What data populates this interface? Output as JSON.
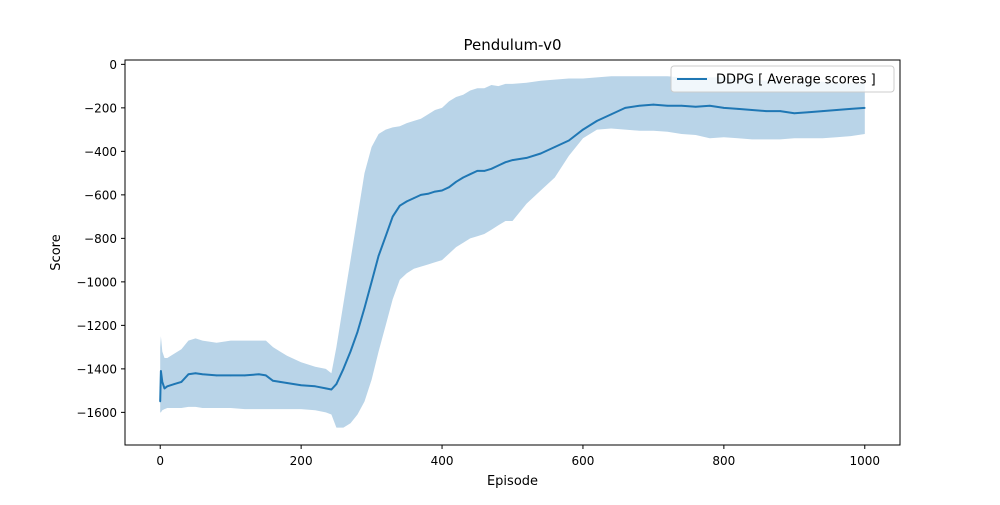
{
  "chart_data": {
    "type": "line",
    "title": "Pendulum-v0",
    "xlabel": "Episode",
    "ylabel": "Score",
    "xlim": [
      -50,
      1050
    ],
    "ylim": [
      -1750,
      20
    ],
    "xticks": [
      0,
      200,
      400,
      600,
      800,
      1000
    ],
    "yticks": [
      0,
      -200,
      -400,
      -600,
      -800,
      -1000,
      -1200,
      -1400,
      -1600
    ],
    "xtick_labels": [
      "0",
      "200",
      "400",
      "600",
      "800",
      "1000"
    ],
    "ytick_labels": [
      "0",
      "−200",
      "−400",
      "−600",
      "−800",
      "−1000",
      "−1200",
      "−1400",
      "−1600"
    ],
    "grid": false,
    "legend": {
      "position": "top-right",
      "entries": [
        "DDPG [ Average scores ]"
      ]
    },
    "series": [
      {
        "name": "DDPG [ Average scores ]",
        "color": "#1f77b4",
        "band_color": "#b9d4e8",
        "x": [
          0,
          1,
          3,
          6,
          10,
          20,
          30,
          40,
          50,
          60,
          80,
          100,
          120,
          140,
          150,
          160,
          170,
          180,
          200,
          220,
          235,
          243,
          250,
          260,
          270,
          280,
          290,
          300,
          310,
          320,
          330,
          340,
          350,
          360,
          370,
          380,
          390,
          400,
          410,
          420,
          430,
          440,
          450,
          460,
          470,
          480,
          490,
          500,
          520,
          540,
          560,
          580,
          600,
          620,
          640,
          660,
          680,
          700,
          720,
          740,
          760,
          780,
          800,
          820,
          840,
          860,
          880,
          900,
          920,
          940,
          960,
          980,
          1000
        ],
        "mean": [
          -1550,
          -1410,
          -1460,
          -1490,
          -1480,
          -1470,
          -1460,
          -1425,
          -1420,
          -1425,
          -1430,
          -1430,
          -1430,
          -1425,
          -1430,
          -1455,
          -1460,
          -1465,
          -1475,
          -1480,
          -1490,
          -1495,
          -1470,
          -1400,
          -1320,
          -1230,
          -1120,
          -1000,
          -880,
          -790,
          -700,
          -650,
          -630,
          -615,
          -600,
          -595,
          -585,
          -580,
          -565,
          -540,
          -520,
          -505,
          -490,
          -490,
          -480,
          -465,
          -450,
          -440,
          -430,
          -410,
          -380,
          -350,
          -300,
          -260,
          -230,
          -200,
          -190,
          -185,
          -190,
          -190,
          -195,
          -190,
          -200,
          -205,
          -210,
          -215,
          -215,
          -225,
          -220,
          -215,
          -210,
          -205,
          -200
        ],
        "lower": [
          -1600,
          -1600,
          -1590,
          -1585,
          -1580,
          -1580,
          -1580,
          -1575,
          -1575,
          -1580,
          -1580,
          -1580,
          -1585,
          -1585,
          -1585,
          -1585,
          -1585,
          -1585,
          -1585,
          -1590,
          -1600,
          -1610,
          -1670,
          -1670,
          -1650,
          -1610,
          -1550,
          -1450,
          -1320,
          -1200,
          -1080,
          -990,
          -960,
          -940,
          -930,
          -920,
          -910,
          -900,
          -870,
          -840,
          -820,
          -800,
          -790,
          -780,
          -760,
          -740,
          -720,
          -720,
          -640,
          -580,
          -520,
          -420,
          -340,
          -300,
          -295,
          -300,
          -305,
          -305,
          -310,
          -320,
          -325,
          -340,
          -335,
          -340,
          -345,
          -345,
          -345,
          -340,
          -340,
          -340,
          -335,
          -330,
          -320
        ],
        "upper": [
          -1300,
          -1250,
          -1320,
          -1350,
          -1350,
          -1330,
          -1310,
          -1270,
          -1260,
          -1270,
          -1280,
          -1270,
          -1270,
          -1270,
          -1270,
          -1300,
          -1320,
          -1340,
          -1370,
          -1390,
          -1400,
          -1420,
          -1300,
          -1100,
          -900,
          -700,
          -500,
          -380,
          -320,
          -300,
          -290,
          -285,
          -270,
          -260,
          -250,
          -230,
          -210,
          -200,
          -170,
          -150,
          -140,
          -120,
          -110,
          -110,
          -95,
          -100,
          -90,
          -90,
          -85,
          -75,
          -70,
          -65,
          -65,
          -60,
          -55,
          -55,
          -55,
          -55,
          -55,
          -60,
          -60,
          -60,
          -60,
          -70,
          -70,
          -75,
          -75,
          -85,
          -80,
          -80,
          -85,
          -85,
          -85
        ]
      }
    ]
  }
}
